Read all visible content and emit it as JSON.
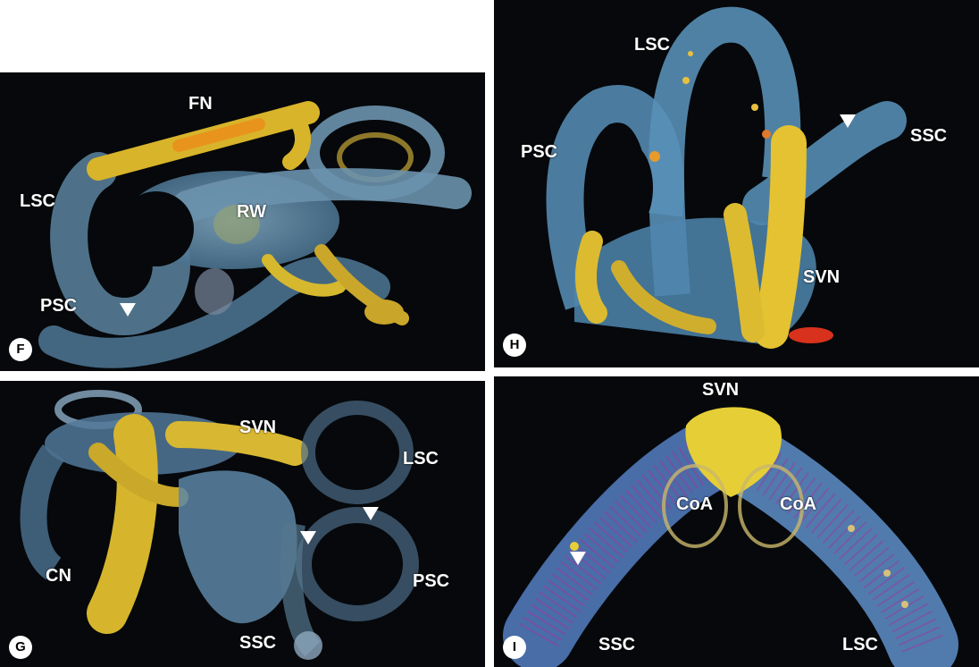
{
  "panels": {
    "F": {
      "badge": "F",
      "labels": {
        "FN": "FN",
        "LSC": "LSC",
        "RW": "RW",
        "PSC": "PSC"
      }
    },
    "G": {
      "badge": "G",
      "labels": {
        "SVN": "SVN",
        "LSC": "LSC",
        "CN": "CN",
        "PSC": "PSC",
        "SSC": "SSC"
      }
    },
    "H": {
      "badge": "H",
      "labels": {
        "LSC": "LSC",
        "PSC": "PSC",
        "SSC": "SSC",
        "SVN": "SVN"
      }
    },
    "I": {
      "badge": "I",
      "labels": {
        "SVN": "SVN",
        "CoA_left": "CoA",
        "CoA_right": "CoA",
        "SSC": "SSC",
        "LSC": "LSC"
      }
    }
  },
  "colors": {
    "background": "#06080b",
    "canal_blue": "#5f8fb0",
    "nerve_yellow": "#e4c43a",
    "vessel_magenta": "#b03aa8",
    "hotspot_red": "#d8321c"
  }
}
